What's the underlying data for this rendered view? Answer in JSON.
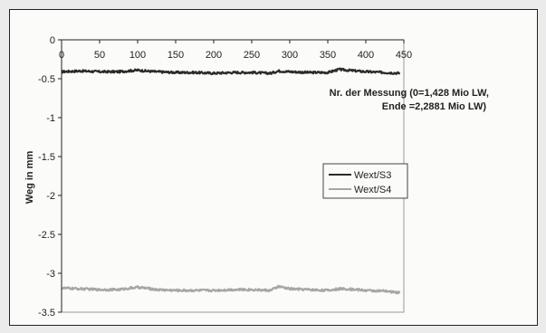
{
  "chart_data": {
    "type": "line",
    "title": "",
    "xlabel": "Nr. der Messung (0=1,428 Mio LW, Ende =2,2881 Mio LW)",
    "xlabel_lines": [
      "Nr. der Messung (0=1,428 Mio LW,",
      "Ende =2,2881 Mio LW)"
    ],
    "ylabel": "Weg in mm",
    "xlim": [
      0,
      450
    ],
    "ylim": [
      -3.5,
      0
    ],
    "x_ticks": [
      "0",
      "50",
      "100",
      "150",
      "200",
      "250",
      "300",
      "350",
      "400",
      "450"
    ],
    "y_ticks": [
      "0",
      "-0.5",
      "-1",
      "-1.5",
      "-2",
      "-2.5",
      "-3",
      "-3.5"
    ],
    "x_axis_position": "top",
    "grid": false,
    "legend_position": "center-right",
    "series": [
      {
        "name": "Wext/S3",
        "color": "#2b2b2b",
        "x": [
          0,
          25,
          50,
          75,
          100,
          110,
          125,
          150,
          175,
          200,
          225,
          250,
          275,
          285,
          300,
          325,
          350,
          365,
          375,
          400,
          425,
          445
        ],
        "y": [
          -0.41,
          -0.4,
          -0.41,
          -0.41,
          -0.39,
          -0.4,
          -0.41,
          -0.42,
          -0.42,
          -0.43,
          -0.42,
          -0.42,
          -0.43,
          -0.4,
          -0.41,
          -0.42,
          -0.42,
          -0.38,
          -0.39,
          -0.41,
          -0.42,
          -0.43
        ]
      },
      {
        "name": "Wext/S4",
        "color": "#a6a6a6",
        "x": [
          0,
          25,
          50,
          75,
          100,
          110,
          125,
          150,
          175,
          200,
          225,
          250,
          275,
          285,
          300,
          325,
          350,
          365,
          375,
          400,
          425,
          445
        ],
        "y": [
          -3.19,
          -3.2,
          -3.21,
          -3.21,
          -3.18,
          -3.19,
          -3.21,
          -3.22,
          -3.22,
          -3.22,
          -3.21,
          -3.21,
          -3.22,
          -3.17,
          -3.2,
          -3.21,
          -3.22,
          -3.2,
          -3.2,
          -3.22,
          -3.23,
          -3.25
        ]
      }
    ]
  }
}
